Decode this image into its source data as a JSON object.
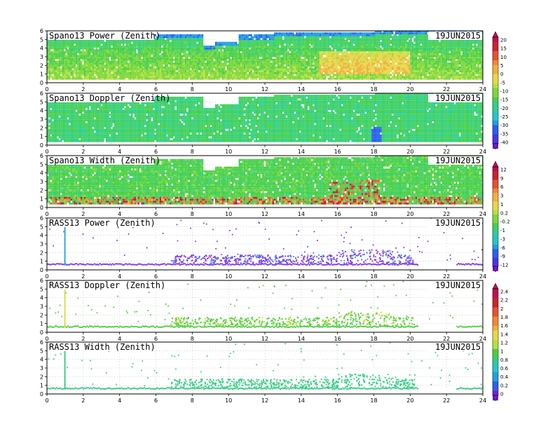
{
  "colors": {
    "power_scale": [
      "#7a1fd0",
      "#4a34e8",
      "#2a60f0",
      "#1ea0e0",
      "#22c8c8",
      "#2fd08a",
      "#48d048",
      "#7ed83a",
      "#b8e040",
      "#e8d848",
      "#f0b040",
      "#f08a30",
      "#e85030",
      "#d02030",
      "#c01050"
    ],
    "rass_power": "#8a3ee6",
    "rass_power_hi": "#2fa8e8",
    "rass_doppler": "#58d048",
    "rass_doppler_hi": "#d8e048",
    "rass_width": "#3ecf88"
  },
  "chart_data": [
    {
      "type": "heatmap",
      "title": "Spano13 Power (Zenith)",
      "date": "19JUN2015",
      "x_ticks": [
        "0",
        "2",
        "4",
        "6",
        "8",
        "10",
        "12",
        "14",
        "16",
        "18",
        "20",
        "22",
        "24"
      ],
      "y_ticks": [
        "0",
        "1",
        "2",
        "3",
        "4",
        "5",
        "6"
      ],
      "xlim": [
        0,
        24
      ],
      "ylim": [
        0,
        6
      ],
      "colorbar": {
        "labels": [
          "20",
          "15",
          "10",
          "5",
          "0",
          "-5",
          "-10",
          "-15",
          "-20",
          "-25",
          "-30",
          "-35",
          "-40"
        ]
      }
    },
    {
      "type": "heatmap",
      "title": "Spano13 Doppler (Zenith)",
      "date": "19JUN2015",
      "x_ticks": [
        "0",
        "2",
        "4",
        "6",
        "8",
        "10",
        "12",
        "14",
        "16",
        "18",
        "20",
        "22",
        "24"
      ],
      "y_ticks": [
        "0",
        "1",
        "2",
        "3",
        "4",
        "5",
        "6"
      ],
      "xlim": [
        0,
        24
      ],
      "ylim": [
        0,
        6
      ]
    },
    {
      "type": "heatmap",
      "title": "Spano13 Width (Zenith)",
      "date": "19JUN2015",
      "x_ticks": [
        "0",
        "2",
        "4",
        "6",
        "8",
        "10",
        "12",
        "14",
        "16",
        "18",
        "20",
        "22",
        "24"
      ],
      "y_ticks": [
        "0",
        "1",
        "2",
        "3",
        "4",
        "5",
        "6"
      ],
      "xlim": [
        0,
        24
      ],
      "ylim": [
        0,
        6
      ],
      "colorbar": {
        "labels": [
          "12",
          "9",
          "6",
          "3",
          "1",
          "0.2",
          "-0.2",
          "-1",
          "-3",
          "-6",
          "-9",
          "-12"
        ]
      }
    },
    {
      "type": "scatter",
      "title": "RASS13 Power (Zenith)",
      "date": "19JUN2015",
      "x_ticks": [
        "0",
        "2",
        "4",
        "6",
        "8",
        "10",
        "12",
        "14",
        "16",
        "18",
        "20",
        "22",
        "24"
      ],
      "y_ticks": [
        "0",
        "1",
        "2",
        "3",
        "4",
        "5",
        "6"
      ],
      "xlim": [
        0,
        24
      ],
      "ylim": [
        0,
        6
      ]
    },
    {
      "type": "scatter",
      "title": "RASS13 Doppler (Zenith)",
      "date": "19JUN2015",
      "x_ticks": [
        "0",
        "2",
        "4",
        "6",
        "8",
        "10",
        "12",
        "14",
        "16",
        "18",
        "20",
        "22",
        "24"
      ],
      "y_ticks": [
        "0",
        "1",
        "2",
        "3",
        "4",
        "5",
        "6"
      ],
      "xlim": [
        0,
        24
      ],
      "ylim": [
        0,
        6
      ],
      "colorbar": {
        "labels": [
          "2.4",
          "2.2",
          "2",
          "1.8",
          "1.6",
          "1.4",
          "1.2",
          "1",
          "0.8",
          "0.6",
          "0.4",
          "0.2",
          "0"
        ]
      }
    },
    {
      "type": "scatter",
      "title": "RASS13 Width (Zenith)",
      "date": "19JUN2015",
      "x_ticks": [
        "0",
        "2",
        "4",
        "6",
        "8",
        "10",
        "12",
        "14",
        "16",
        "18",
        "20",
        "22",
        "24"
      ],
      "y_ticks": [
        "0",
        "1",
        "2",
        "3",
        "4",
        "5",
        "6"
      ],
      "xlim": [
        0,
        24
      ],
      "ylim": [
        0,
        6
      ]
    }
  ]
}
